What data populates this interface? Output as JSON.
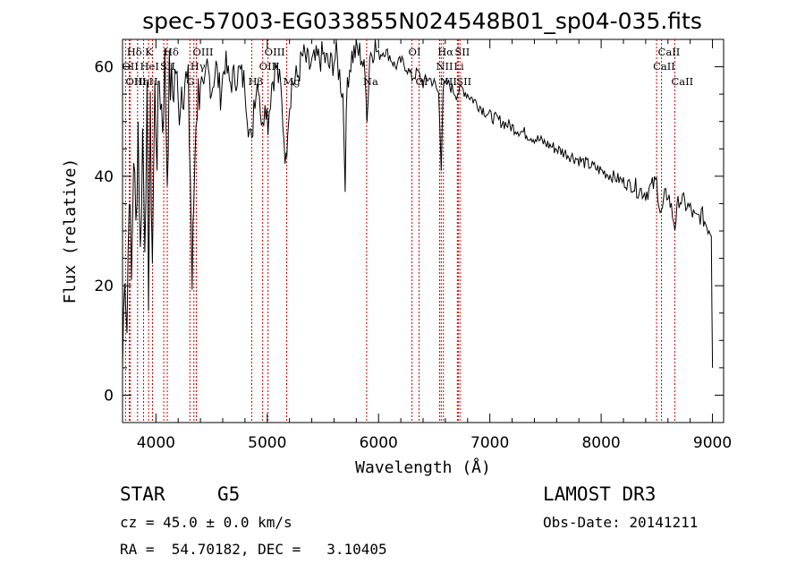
{
  "chart_data": {
    "type": "line",
    "title": "spec-57003-EG033855N024548B01_sp04-035.fits",
    "xlabel": "Wavelength (Å)",
    "ylabel": "Flux (relative)",
    "xlim": [
      3700,
      9100
    ],
    "ylim": [
      -5,
      65
    ],
    "xticks": [
      4000,
      5000,
      6000,
      7000,
      8000,
      9000
    ],
    "yticks": [
      0,
      20,
      40,
      60
    ],
    "series": [
      {
        "name": "spectrum",
        "x": [
          3700,
          3720,
          3740,
          3760,
          3780,
          3800,
          3820,
          3840,
          3860,
          3880,
          3900,
          3920,
          3933,
          3950,
          3968,
          3990,
          4010,
          4030,
          4060,
          4080,
          4102,
          4120,
          4150,
          4180,
          4200,
          4230,
          4260,
          4290,
          4310,
          4325,
          4340,
          4360,
          4380,
          4400,
          4430,
          4460,
          4500,
          4540,
          4580,
          4620,
          4660,
          4700,
          4750,
          4800,
          4830,
          4861,
          4880,
          4920,
          4957,
          4980,
          5007,
          5040,
          5080,
          5120,
          5170,
          5183,
          5220,
          5270,
          5320,
          5380,
          5440,
          5500,
          5560,
          5620,
          5680,
          5700,
          5720,
          5760,
          5800,
          5850,
          5890,
          5896,
          5920,
          5960,
          6000,
          6050,
          6100,
          6150,
          6200,
          6250,
          6300,
          6350,
          6400,
          6450,
          6500,
          6540,
          6563,
          6580,
          6620,
          6660,
          6700,
          6750,
          6800,
          6900,
          7000,
          7100,
          7200,
          7300,
          7400,
          7500,
          7600,
          7700,
          7800,
          7900,
          8000,
          8100,
          8200,
          8300,
          8400,
          8450,
          8498,
          8530,
          8542,
          8570,
          8600,
          8662,
          8700,
          8750,
          8800,
          8850,
          8900,
          8950,
          8990,
          9000
        ],
        "values": [
          5,
          25,
          12,
          40,
          20,
          45,
          30,
          50,
          25,
          48,
          30,
          52,
          20,
          50,
          25,
          55,
          45,
          58,
          50,
          60,
          40,
          58,
          55,
          60,
          52,
          57,
          58,
          55,
          40,
          20,
          35,
          52,
          55,
          58,
          54,
          60,
          56,
          60,
          55,
          61,
          57,
          58,
          59,
          57,
          50,
          45,
          54,
          58,
          48,
          55,
          50,
          57,
          60,
          56,
          42,
          50,
          57,
          58,
          62,
          60,
          61,
          62,
          60,
          62,
          55,
          40,
          58,
          62,
          63,
          62,
          56,
          50,
          62,
          64,
          62,
          63,
          62,
          60,
          61,
          60,
          58,
          59,
          57,
          58,
          57,
          55,
          42,
          56,
          57,
          56,
          55,
          56,
          55,
          53,
          51,
          50,
          49,
          48,
          47,
          46,
          45,
          44,
          43,
          42,
          41,
          40,
          39,
          38,
          37,
          38,
          39,
          34,
          33,
          36,
          37,
          31,
          36,
          35,
          34,
          32,
          33,
          31,
          30,
          5
        ]
      }
    ],
    "spectral_lines": [
      {
        "name": "Hδ",
        "x": 3770,
        "row": 1
      },
      {
        "name": "OII",
        "x": 3727,
        "row": 2
      },
      {
        "name": "OIII",
        "x": 3760,
        "row": 3
      },
      {
        "name": "K",
        "x": 3934,
        "row": 1
      },
      {
        "name": "HeI",
        "x": 3889,
        "row": 2
      },
      {
        "name": "Hη",
        "x": 3835,
        "row": 3
      },
      {
        "name": "H",
        "x": 3969,
        "row": 3
      },
      {
        "name": "Hδ",
        "x": 4102,
        "row": 1
      },
      {
        "name": "SII",
        "x": 4070,
        "row": 2
      },
      {
        "name": "OIII",
        "x": 4363,
        "row": 1
      },
      {
        "name": "Hγ",
        "x": 4341,
        "row": 2
      },
      {
        "name": "G",
        "x": 4305,
        "row": 3
      },
      {
        "name": "OIII",
        "x": 5007,
        "row": 1
      },
      {
        "name": "OIII",
        "x": 4959,
        "row": 2
      },
      {
        "name": "Hβ",
        "x": 4861,
        "row": 3
      },
      {
        "name": "Mg",
        "x": 5175,
        "row": 3
      },
      {
        "name": "Na",
        "x": 5893,
        "row": 3
      },
      {
        "name": "OI",
        "x": 6300,
        "row": 1
      },
      {
        "name": "OI",
        "x": 6364,
        "row": 3
      },
      {
        "name": "Hα",
        "x": 6563,
        "row": 1
      },
      {
        "name": "SII",
        "x": 6716,
        "row": 1
      },
      {
        "name": "NII",
        "x": 6548,
        "row": 2
      },
      {
        "name": "Li",
        "x": 6708,
        "row": 2
      },
      {
        "name": "NII",
        "x": 6583,
        "row": 3
      },
      {
        "name": "SII",
        "x": 6731,
        "row": 3
      },
      {
        "name": "CaII",
        "x": 8542,
        "row": 1
      },
      {
        "name": "CaII",
        "x": 8498,
        "row": 2
      },
      {
        "name": "CaII",
        "x": 8662,
        "row": 3
      }
    ]
  },
  "info": {
    "class_label": "STAR",
    "subclass": "G5",
    "survey": "LAMOST DR3",
    "cz_line": "cz = 45.0 ± 0.0 km/s",
    "obs_date": "Obs-Date: 20141211",
    "radec_line": "RA =  54.70182, DEC =   3.10405"
  },
  "colors": {
    "line_marker": "#cc0000",
    "spectrum": "#000000"
  }
}
